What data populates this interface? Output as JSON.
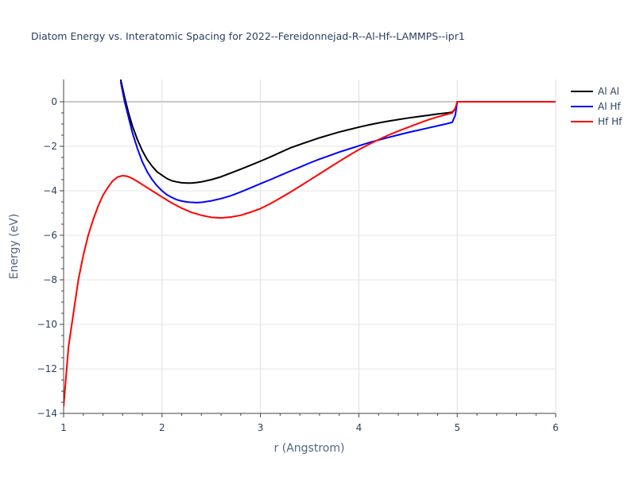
{
  "chart_data": {
    "type": "line",
    "title": "Diatom Energy vs. Interatomic Spacing for 2022--Fereidonnejad-R--Al-Hf--LAMMPS--ipr1",
    "xlabel": "r (Angstrom)",
    "ylabel": "Energy (eV)",
    "xlim": [
      1,
      6
    ],
    "ylim": [
      -14,
      1
    ],
    "xticks": [
      1,
      2,
      3,
      4,
      5,
      6
    ],
    "yticks": [
      0,
      -2,
      -4,
      -6,
      -8,
      -10,
      -12,
      -14
    ],
    "xtick_labels": [
      "1",
      "2",
      "3",
      "4",
      "5",
      "6"
    ],
    "ytick_labels": [
      "0",
      "−2",
      "−4",
      "−6",
      "−8",
      "−10",
      "−12",
      "−14"
    ],
    "grid": true,
    "legend_position": "top-right",
    "series": [
      {
        "name": "Al Al",
        "color": "#000000",
        "x": [
          1.58,
          1.62,
          1.66,
          1.7,
          1.75,
          1.8,
          1.85,
          1.9,
          1.95,
          2.0,
          2.05,
          2.1,
          2.15,
          2.2,
          2.25,
          2.3,
          2.35,
          2.4,
          2.5,
          2.6,
          2.7,
          2.8,
          2.9,
          3.0,
          3.1,
          3.2,
          3.3,
          3.4,
          3.5,
          3.6,
          3.7,
          3.8,
          3.9,
          4.0,
          4.1,
          4.2,
          4.3,
          4.4,
          4.5,
          4.6,
          4.7,
          4.8,
          4.9,
          4.95,
          4.98,
          5.0,
          5.5,
          6.0
        ],
        "y": [
          1.0,
          0.2,
          -0.5,
          -1.1,
          -1.7,
          -2.2,
          -2.6,
          -2.9,
          -3.15,
          -3.3,
          -3.45,
          -3.55,
          -3.6,
          -3.64,
          -3.65,
          -3.65,
          -3.63,
          -3.6,
          -3.5,
          -3.37,
          -3.2,
          -3.03,
          -2.85,
          -2.67,
          -2.48,
          -2.28,
          -2.08,
          -1.92,
          -1.77,
          -1.62,
          -1.49,
          -1.36,
          -1.25,
          -1.14,
          -1.04,
          -0.95,
          -0.87,
          -0.8,
          -0.73,
          -0.67,
          -0.61,
          -0.55,
          -0.5,
          -0.47,
          -0.3,
          0.0,
          0.0,
          0.0
        ]
      },
      {
        "name": "Al Hf",
        "color": "#0000ff",
        "x": [
          1.58,
          1.62,
          1.66,
          1.7,
          1.75,
          1.8,
          1.85,
          1.9,
          1.95,
          2.0,
          2.05,
          2.1,
          2.15,
          2.2,
          2.25,
          2.3,
          2.35,
          2.4,
          2.5,
          2.6,
          2.7,
          2.8,
          2.9,
          3.0,
          3.1,
          3.2,
          3.3,
          3.4,
          3.5,
          3.6,
          3.7,
          3.8,
          3.9,
          4.0,
          4.1,
          4.2,
          4.3,
          4.4,
          4.5,
          4.6,
          4.7,
          4.8,
          4.9,
          4.95,
          4.98,
          5.0,
          5.5,
          6.0
        ],
        "y": [
          0.9,
          0.0,
          -0.7,
          -1.4,
          -2.1,
          -2.7,
          -3.15,
          -3.5,
          -3.78,
          -4.0,
          -4.18,
          -4.3,
          -4.4,
          -4.46,
          -4.5,
          -4.52,
          -4.53,
          -4.52,
          -4.45,
          -4.35,
          -4.22,
          -4.05,
          -3.87,
          -3.68,
          -3.5,
          -3.31,
          -3.12,
          -2.94,
          -2.75,
          -2.58,
          -2.42,
          -2.26,
          -2.12,
          -1.98,
          -1.84,
          -1.72,
          -1.6,
          -1.49,
          -1.38,
          -1.28,
          -1.18,
          -1.08,
          -0.98,
          -0.92,
          -0.6,
          0.0,
          0.0,
          0.0
        ]
      },
      {
        "name": "Hf Hf",
        "color": "#ff0000",
        "x": [
          1.0,
          1.02,
          1.05,
          1.1,
          1.15,
          1.2,
          1.25,
          1.3,
          1.35,
          1.4,
          1.45,
          1.5,
          1.55,
          1.6,
          1.65,
          1.7,
          1.75,
          1.8,
          1.9,
          2.0,
          2.1,
          2.2,
          2.3,
          2.4,
          2.5,
          2.6,
          2.7,
          2.8,
          2.9,
          3.0,
          3.1,
          3.2,
          3.3,
          3.4,
          3.5,
          3.6,
          3.7,
          3.8,
          3.9,
          4.0,
          4.1,
          4.2,
          4.3,
          4.4,
          4.5,
          4.6,
          4.7,
          4.8,
          4.9,
          4.95,
          4.98,
          5.0,
          5.5,
          6.0
        ],
        "y": [
          -13.7,
          -12.6,
          -11.0,
          -9.5,
          -8.0,
          -6.9,
          -6.0,
          -5.3,
          -4.7,
          -4.2,
          -3.85,
          -3.55,
          -3.38,
          -3.32,
          -3.35,
          -3.45,
          -3.58,
          -3.72,
          -4.0,
          -4.28,
          -4.55,
          -4.78,
          -4.97,
          -5.1,
          -5.19,
          -5.22,
          -5.18,
          -5.1,
          -4.96,
          -4.8,
          -4.58,
          -4.33,
          -4.07,
          -3.8,
          -3.52,
          -3.24,
          -2.96,
          -2.68,
          -2.41,
          -2.15,
          -1.92,
          -1.7,
          -1.5,
          -1.32,
          -1.15,
          -0.98,
          -0.82,
          -0.68,
          -0.56,
          -0.5,
          -0.3,
          0.0,
          0.0,
          0.0
        ]
      }
    ]
  }
}
